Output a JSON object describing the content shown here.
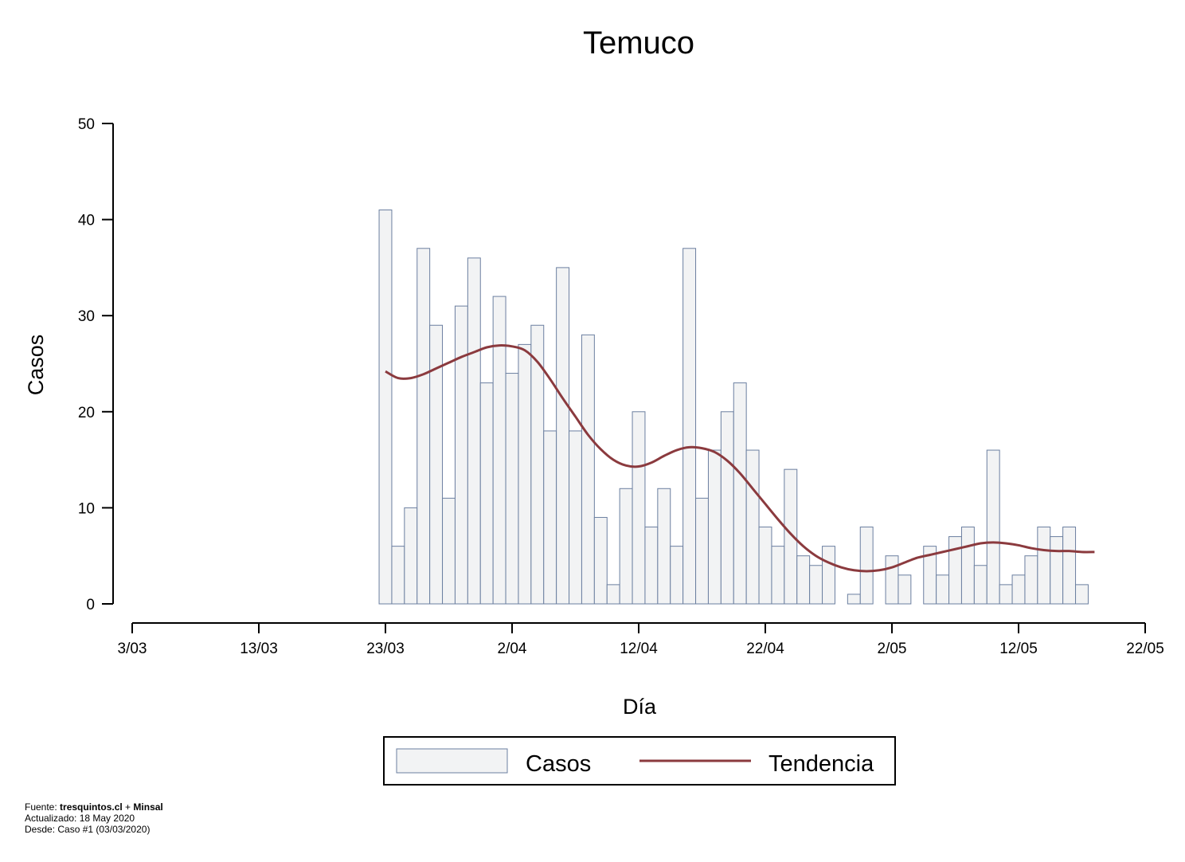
{
  "chart_data": {
    "type": "bar",
    "title": "Temuco",
    "xlabel": "Día",
    "ylabel": "Casos",
    "ylim": [
      0,
      50
    ],
    "yticks": [
      0,
      10,
      20,
      30,
      40,
      50
    ],
    "xticks": [
      "3/03",
      "13/03",
      "23/03",
      "2/04",
      "12/04",
      "22/04",
      "2/05",
      "12/05",
      "22/05"
    ],
    "x_start": "23/03",
    "categories": [
      "23/03",
      "24/03",
      "25/03",
      "26/03",
      "27/03",
      "28/03",
      "29/03",
      "30/03",
      "31/03",
      "1/04",
      "2/04",
      "3/04",
      "4/04",
      "5/04",
      "6/04",
      "7/04",
      "8/04",
      "9/04",
      "10/04",
      "11/04",
      "12/04",
      "13/04",
      "14/04",
      "15/04",
      "16/04",
      "17/04",
      "18/04",
      "19/04",
      "20/04",
      "21/04",
      "22/04",
      "23/04",
      "24/04",
      "25/04",
      "26/04",
      "27/04",
      "28/04",
      "29/04",
      "30/04",
      "1/05",
      "2/05",
      "3/05",
      "4/05",
      "5/05",
      "6/05",
      "7/05",
      "8/05",
      "9/05",
      "10/05",
      "11/05",
      "12/05",
      "13/05",
      "14/05",
      "15/05",
      "16/05",
      "17/05",
      "18/05"
    ],
    "series": [
      {
        "name": "Casos",
        "type": "bar",
        "fill": "#f2f3f4",
        "stroke": "#6b7fa0",
        "values": [
          41,
          6,
          10,
          37,
          29,
          11,
          31,
          36,
          23,
          32,
          24,
          27,
          29,
          18,
          35,
          18,
          28,
          9,
          2,
          12,
          20,
          8,
          12,
          6,
          37,
          11,
          16,
          20,
          23,
          16,
          8,
          6,
          14,
          5,
          4,
          6,
          0,
          1,
          8,
          0,
          5,
          3,
          0,
          6,
          3,
          7,
          8,
          4,
          16,
          2,
          3,
          5,
          8,
          7,
          8,
          2,
          0
        ]
      },
      {
        "name": "Tendencia",
        "type": "line",
        "color": "#8b3a3e",
        "values": [
          24.2,
          23.5,
          23.5,
          23.9,
          24.5,
          25.1,
          25.7,
          26.2,
          26.7,
          26.9,
          26.8,
          26.4,
          25.2,
          23.4,
          21.4,
          19.5,
          17.6,
          16.1,
          15.0,
          14.4,
          14.3,
          14.7,
          15.4,
          16.0,
          16.3,
          16.2,
          15.8,
          14.9,
          13.6,
          12.0,
          10.4,
          8.8,
          7.3,
          6.0,
          5.0,
          4.3,
          3.8,
          3.5,
          3.4,
          3.5,
          3.8,
          4.3,
          4.8,
          5.1,
          5.4,
          5.7,
          6.0,
          6.3,
          6.4,
          6.3,
          6.1,
          5.8,
          5.6,
          5.5,
          5.5,
          5.4,
          5.4
        ]
      }
    ],
    "legend": {
      "position": "bottom",
      "entries": [
        "Casos",
        "Tendencia"
      ]
    }
  },
  "footer": {
    "source_prefix": "Fuente: ",
    "source_site": "tresquintos.cl",
    "source_sep": " + ",
    "source_org": "Minsal",
    "updated": "Actualizado: 18 May 2020",
    "since": "Desde: Caso #1  (03/03/2020)"
  }
}
